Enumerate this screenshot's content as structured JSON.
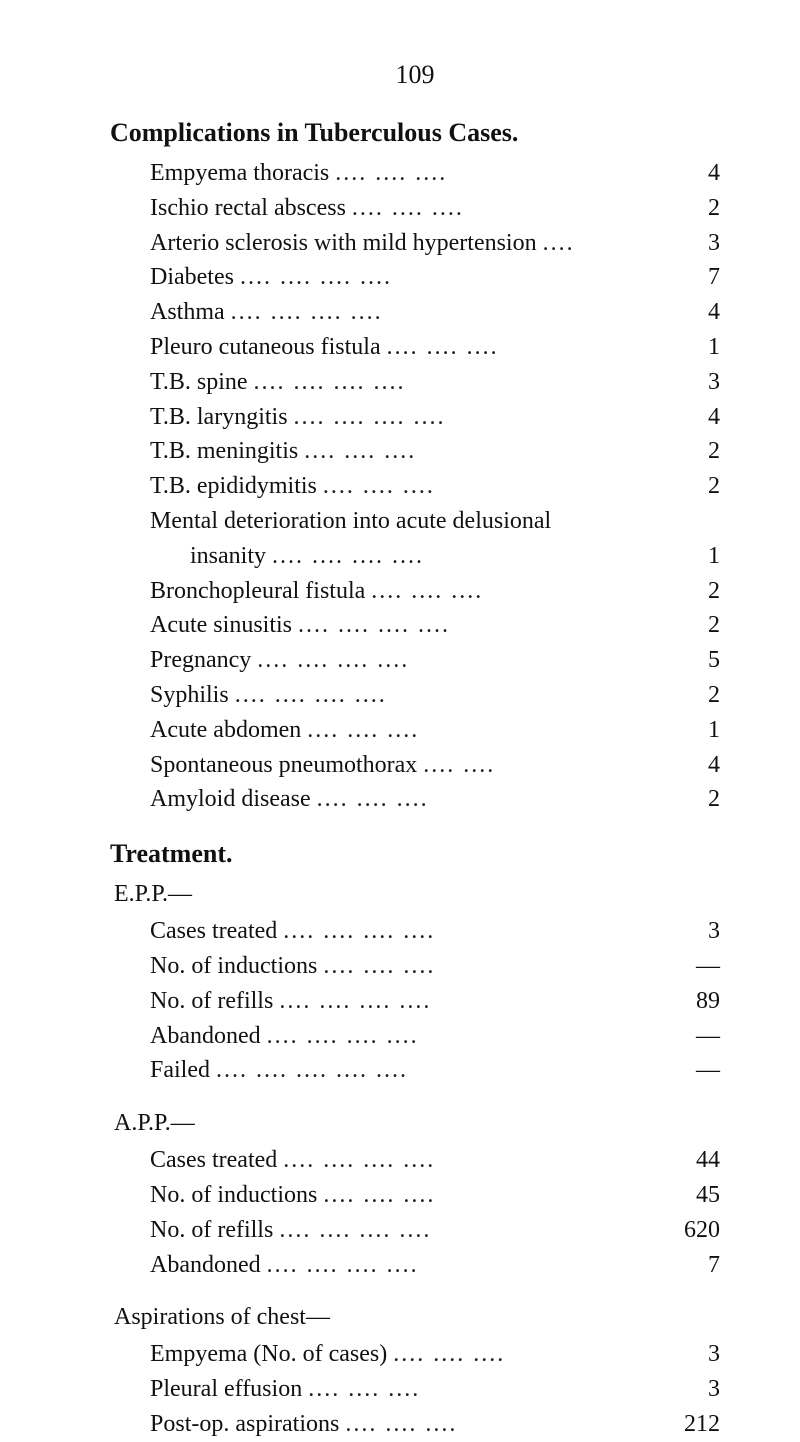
{
  "page_number": "109",
  "sections": [
    {
      "title": "Complications in Tuberculous Cases.",
      "items": [
        {
          "label": "Empyema thoracis",
          "leaders": "....                ....                ....",
          "value": "4"
        },
        {
          "label": "Ischio rectal abscess",
          "leaders": "....                ....                ....",
          "value": "2"
        },
        {
          "label": "Arterio sclerosis with mild hypertension",
          "leaders": "....",
          "value": "3"
        },
        {
          "label": "Diabetes",
          "leaders": "....                ....                ....                ....",
          "value": "7"
        },
        {
          "label": "Asthma",
          "leaders": "....                ....                ....                ....",
          "value": "4"
        },
        {
          "label": "Pleuro cutaneous fistula",
          "leaders": "....                ....                ....",
          "value": "1"
        },
        {
          "label": "T.B. spine",
          "leaders": "....                ....                ....                ....",
          "value": "3"
        },
        {
          "label": "T.B. laryngitis",
          "leaders": "....                ....                ....                ....",
          "value": "4"
        },
        {
          "label": "T.B. meningitis",
          "leaders": "....                ....                ....",
          "value": "2"
        },
        {
          "label": "T.B. epididymitis",
          "leaders": "....                ....                ....",
          "value": "2"
        },
        {
          "label": "Mental deterioration into acute delusional",
          "leaders": "",
          "value": ""
        },
        {
          "label": "insanity",
          "leaders": "....                ....                ....                ....",
          "value": "1",
          "indent": true
        },
        {
          "label": "Bronchopleural fistula",
          "leaders": "....                ....                ....",
          "value": "2"
        },
        {
          "label": "Acute sinusitis",
          "leaders": "....                ....                ....                ....",
          "value": "2"
        },
        {
          "label": "Pregnancy",
          "leaders": "....                ....                ....                ....",
          "value": "5"
        },
        {
          "label": "Syphilis",
          "leaders": "....                ....                ....                ....",
          "value": "2"
        },
        {
          "label": "Acute abdomen",
          "leaders": "....                ....                ....",
          "value": "1"
        },
        {
          "label": "Spontaneous pneumothorax",
          "leaders": "....                ....",
          "value": "4"
        },
        {
          "label": "Amyloid disease",
          "leaders": "....                ....                ....",
          "value": "2"
        }
      ]
    },
    {
      "title": "Treatment.",
      "groups": [
        {
          "subhead": "E.P.P.—",
          "items": [
            {
              "label": "Cases treated",
              "leaders": "....                ....                ....                ....",
              "value": "3"
            },
            {
              "label": "No. of inductions",
              "leaders": "....                ....                ....",
              "value": "—"
            },
            {
              "label": "No. of refills",
              "leaders": "....                ....                ....                ....",
              "value": "89"
            },
            {
              "label": "Abandoned",
              "leaders": "....                ....                ....                ....",
              "value": "—"
            },
            {
              "label": "Failed",
              "leaders": "....                ....                ....                ....                ....",
              "value": "—"
            }
          ]
        },
        {
          "subhead": "A.P.P.—",
          "items": [
            {
              "label": "Cases treated",
              "leaders": "....                ....                ....                ....",
              "value": "44"
            },
            {
              "label": "No. of inductions",
              "leaders": "....                ....                ....",
              "value": "45"
            },
            {
              "label": "No. of refills",
              "leaders": "....                ....                ....                ....",
              "value": "620"
            },
            {
              "label": "Abandoned",
              "leaders": "....                ....                ....                ....",
              "value": "7"
            }
          ]
        },
        {
          "subhead": "Aspirations of chest—",
          "items": [
            {
              "label": "Empyema (No. of cases)",
              "leaders": "....                ....                ....",
              "value": "3"
            },
            {
              "label": "Pleural effusion",
              "leaders": "....                ....                ....",
              "value": "3"
            },
            {
              "label": "Post-op. aspirations",
              "leaders": "....                ....                ....",
              "value": "212"
            }
          ]
        }
      ]
    }
  ]
}
